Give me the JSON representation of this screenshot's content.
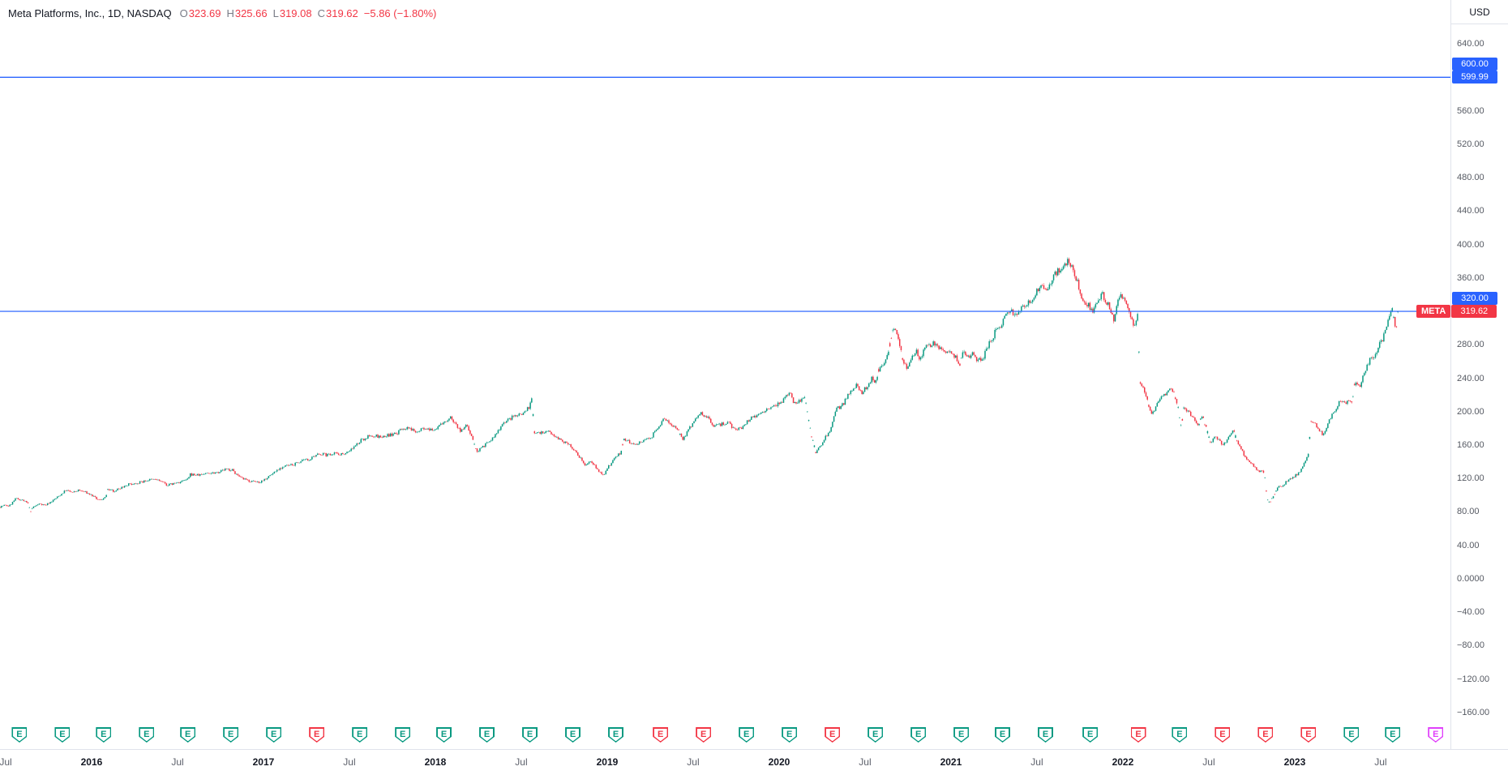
{
  "header": {
    "title": "Meta Platforms, Inc., 1D, NASDAQ",
    "ohlc": [
      {
        "label": "O",
        "value": "323.69"
      },
      {
        "label": "H",
        "value": "325.66"
      },
      {
        "label": "L",
        "value": "319.08"
      },
      {
        "label": "C",
        "value": "319.62"
      }
    ],
    "change": "−5.86 (−1.80%)"
  },
  "price_scale": {
    "currency": "USD",
    "ticks": [
      {
        "price": 640,
        "label": "640.00"
      },
      {
        "price": 560,
        "label": "560.00"
      },
      {
        "price": 520,
        "label": "520.00"
      },
      {
        "price": 480,
        "label": "480.00"
      },
      {
        "price": 440,
        "label": "440.00"
      },
      {
        "price": 400,
        "label": "400.00"
      },
      {
        "price": 360,
        "label": "360.00"
      },
      {
        "price": 280,
        "label": "280.00"
      },
      {
        "price": 240,
        "label": "240.00"
      },
      {
        "price": 200,
        "label": "200.00"
      },
      {
        "price": 160,
        "label": "160.00"
      },
      {
        "price": 120,
        "label": "120.00"
      },
      {
        "price": 80,
        "label": "80.00"
      },
      {
        "price": 40,
        "label": "40.00"
      },
      {
        "price": 0,
        "label": "0.0000"
      },
      {
        "price": -40,
        "label": "−40.00"
      },
      {
        "price": -80,
        "label": "−80.00"
      },
      {
        "price": -120,
        "label": "−120.00"
      },
      {
        "price": -160,
        "label": "−160.00"
      }
    ],
    "badges": [
      {
        "label": "600.00",
        "price": 600,
        "stack": -1,
        "kind": "level"
      },
      {
        "label": "599.99",
        "price": 599.99,
        "stack": 0,
        "kind": "level"
      },
      {
        "label": "320.00",
        "price": 320,
        "stack": -1,
        "kind": "level"
      },
      {
        "label": "319.62",
        "prefix": "META",
        "price": 319.62,
        "stack": 0,
        "kind": "last-price"
      }
    ]
  },
  "time_scale": {
    "labels": [
      {
        "text": "Jul",
        "year": 2015.5,
        "major": false
      },
      {
        "text": "2016",
        "year": 2016,
        "major": true
      },
      {
        "text": "Jul",
        "year": 2016.5,
        "major": false
      },
      {
        "text": "2017",
        "year": 2017,
        "major": true
      },
      {
        "text": "Jul",
        "year": 2017.5,
        "major": false
      },
      {
        "text": "2018",
        "year": 2018,
        "major": true
      },
      {
        "text": "Jul",
        "year": 2018.5,
        "major": false
      },
      {
        "text": "2019",
        "year": 2019,
        "major": true
      },
      {
        "text": "Jul",
        "year": 2019.5,
        "major": false
      },
      {
        "text": "2020",
        "year": 2020,
        "major": true
      },
      {
        "text": "Jul",
        "year": 2020.5,
        "major": false
      },
      {
        "text": "2021",
        "year": 2021,
        "major": true
      },
      {
        "text": "Jul",
        "year": 2021.5,
        "major": false
      },
      {
        "text": "2022",
        "year": 2022,
        "major": true
      },
      {
        "text": "Jul",
        "year": 2022.5,
        "major": false
      },
      {
        "text": "2023",
        "year": 2023,
        "major": true
      },
      {
        "text": "Jul",
        "year": 2023.5,
        "major": false
      }
    ]
  },
  "earnings_markers": [
    {
      "year": 2015.58,
      "status": "beat"
    },
    {
      "year": 2015.83,
      "status": "beat"
    },
    {
      "year": 2016.07,
      "status": "beat"
    },
    {
      "year": 2016.32,
      "status": "beat"
    },
    {
      "year": 2016.56,
      "status": "beat"
    },
    {
      "year": 2016.81,
      "status": "beat"
    },
    {
      "year": 2017.06,
      "status": "beat"
    },
    {
      "year": 2017.31,
      "status": "miss"
    },
    {
      "year": 2017.56,
      "status": "beat"
    },
    {
      "year": 2017.81,
      "status": "beat"
    },
    {
      "year": 2018.05,
      "status": "beat"
    },
    {
      "year": 2018.3,
      "status": "beat"
    },
    {
      "year": 2018.55,
      "status": "beat"
    },
    {
      "year": 2018.8,
      "status": "beat"
    },
    {
      "year": 2019.05,
      "status": "beat"
    },
    {
      "year": 2019.31,
      "status": "miss"
    },
    {
      "year": 2019.56,
      "status": "miss"
    },
    {
      "year": 2019.81,
      "status": "beat"
    },
    {
      "year": 2020.06,
      "status": "beat"
    },
    {
      "year": 2020.31,
      "status": "miss"
    },
    {
      "year": 2020.56,
      "status": "beat"
    },
    {
      "year": 2020.81,
      "status": "beat"
    },
    {
      "year": 2021.06,
      "status": "beat"
    },
    {
      "year": 2021.3,
      "status": "beat"
    },
    {
      "year": 2021.55,
      "status": "beat"
    },
    {
      "year": 2021.81,
      "status": "beat"
    },
    {
      "year": 2022.09,
      "status": "miss"
    },
    {
      "year": 2022.33,
      "status": "beat"
    },
    {
      "year": 2022.58,
      "status": "miss"
    },
    {
      "year": 2022.83,
      "status": "miss"
    },
    {
      "year": 2023.08,
      "status": "miss"
    },
    {
      "year": 2023.33,
      "status": "beat"
    },
    {
      "year": 2023.57,
      "status": "beat"
    },
    {
      "year": 2023.82,
      "status": "upcoming"
    }
  ],
  "colors": {
    "up": "#089981",
    "down": "#f23645",
    "level_line": "#2962ff",
    "level_badge": "#2962ff",
    "last_badge": "#f23645",
    "beat": "#089981",
    "miss": "#f23645",
    "upcoming": "#e040fb",
    "title_text": "#131722",
    "muted_text": "#787b86",
    "tick_text": "#555962",
    "axis_border": "#e0e3eb"
  },
  "chart_data": {
    "type": "candlestick",
    "title": "Meta Platforms, Inc., 1D, NASDAQ",
    "symbol": "META",
    "exchange": "NASDAQ",
    "timeframe": "1D",
    "currency": "USD",
    "grid": false,
    "legend_position": "top-left",
    "xlim_years": [
      2015.467,
      2023.906
    ],
    "ylim_price": [
      -203.7,
      692.5
    ],
    "last_close": 319.62,
    "horizontal_lines": [
      600.0,
      599.99,
      320.0
    ],
    "bar_count": 1000,
    "volatility": 0.012,
    "seed": 7,
    "anchors": [
      [
        2015.467,
        86
      ],
      [
        2015.49,
        88
      ],
      [
        2015.52,
        87
      ],
      [
        2015.56,
        96
      ],
      [
        2015.6,
        94
      ],
      [
        2015.63,
        90
      ],
      [
        2015.645,
        80
      ],
      [
        2015.66,
        86
      ],
      [
        2015.7,
        90
      ],
      [
        2015.73,
        88
      ],
      [
        2015.77,
        93
      ],
      [
        2015.81,
        99
      ],
      [
        2015.85,
        106
      ],
      [
        2015.89,
        103
      ],
      [
        2015.92,
        106
      ],
      [
        2015.96,
        104
      ],
      [
        2016,
        100
      ],
      [
        2016.04,
        94
      ],
      [
        2016.08,
        97
      ],
      [
        2016.095,
        107
      ],
      [
        2016.13,
        105
      ],
      [
        2016.17,
        109
      ],
      [
        2016.21,
        113
      ],
      [
        2016.25,
        114
      ],
      [
        2016.29,
        116
      ],
      [
        2016.33,
        118
      ],
      [
        2016.37,
        119
      ],
      [
        2016.4,
        117
      ],
      [
        2016.44,
        112
      ],
      [
        2016.48,
        114
      ],
      [
        2016.52,
        116
      ],
      [
        2016.56,
        119
      ],
      [
        2016.575,
        125
      ],
      [
        2016.62,
        124
      ],
      [
        2016.66,
        126
      ],
      [
        2016.7,
        127
      ],
      [
        2016.74,
        128
      ],
      [
        2016.78,
        131
      ],
      [
        2016.82,
        130
      ],
      [
        2016.86,
        121
      ],
      [
        2016.9,
        118
      ],
      [
        2016.94,
        116
      ],
      [
        2016.98,
        116
      ],
      [
        2017.02,
        121
      ],
      [
        2017.06,
        127
      ],
      [
        2017.09,
        132
      ],
      [
        2017.13,
        135
      ],
      [
        2017.17,
        136
      ],
      [
        2017.21,
        140
      ],
      [
        2017.25,
        142
      ],
      [
        2017.29,
        145
      ],
      [
        2017.33,
        150
      ],
      [
        2017.37,
        148
      ],
      [
        2017.41,
        151
      ],
      [
        2017.45,
        149
      ],
      [
        2017.49,
        152
      ],
      [
        2017.53,
        158
      ],
      [
        2017.57,
        166
      ],
      [
        2017.61,
        170
      ],
      [
        2017.65,
        171
      ],
      [
        2017.69,
        169
      ],
      [
        2017.73,
        172
      ],
      [
        2017.77,
        173
      ],
      [
        2017.81,
        180
      ],
      [
        2017.85,
        179
      ],
      [
        2017.89,
        177
      ],
      [
        2017.93,
        180
      ],
      [
        2017.97,
        177
      ],
      [
        2018.01,
        181
      ],
      [
        2018.05,
        187
      ],
      [
        2018.09,
        193
      ],
      [
        2018.12,
        185
      ],
      [
        2018.15,
        176
      ],
      [
        2018.18,
        184
      ],
      [
        2018.21,
        172
      ],
      [
        2018.24,
        152
      ],
      [
        2018.27,
        158
      ],
      [
        2018.31,
        163
      ],
      [
        2018.35,
        172
      ],
      [
        2018.39,
        186
      ],
      [
        2018.43,
        191
      ],
      [
        2018.47,
        196
      ],
      [
        2018.51,
        198
      ],
      [
        2018.55,
        207
      ],
      [
        2018.562,
        217
      ],
      [
        2018.575,
        176
      ],
      [
        2018.61,
        175
      ],
      [
        2018.65,
        177
      ],
      [
        2018.69,
        172
      ],
      [
        2018.73,
        166
      ],
      [
        2018.77,
        161
      ],
      [
        2018.81,
        155
      ],
      [
        2018.84,
        145
      ],
      [
        2018.87,
        137
      ],
      [
        2018.9,
        141
      ],
      [
        2018.93,
        135
      ],
      [
        2018.96,
        127
      ],
      [
        2018.985,
        125
      ],
      [
        2019.01,
        135
      ],
      [
        2019.05,
        147
      ],
      [
        2019.08,
        150
      ],
      [
        2019.095,
        166
      ],
      [
        2019.13,
        164
      ],
      [
        2019.17,
        162
      ],
      [
        2019.21,
        166
      ],
      [
        2019.25,
        168
      ],
      [
        2019.29,
        179
      ],
      [
        2019.33,
        192
      ],
      [
        2019.37,
        186
      ],
      [
        2019.41,
        178
      ],
      [
        2019.44,
        166
      ],
      [
        2019.47,
        177
      ],
      [
        2019.51,
        191
      ],
      [
        2019.55,
        198
      ],
      [
        2019.59,
        192
      ],
      [
        2019.62,
        182
      ],
      [
        2019.66,
        184
      ],
      [
        2019.7,
        188
      ],
      [
        2019.74,
        179
      ],
      [
        2019.78,
        181
      ],
      [
        2019.82,
        190
      ],
      [
        2019.86,
        195
      ],
      [
        2019.9,
        201
      ],
      [
        2019.94,
        203
      ],
      [
        2019.98,
        206
      ],
      [
        2020.02,
        213
      ],
      [
        2020.06,
        222
      ],
      [
        2020.09,
        210
      ],
      [
        2020.12,
        214
      ],
      [
        2020.15,
        216
      ],
      [
        2020.17,
        193
      ],
      [
        2020.19,
        170
      ],
      [
        2020.215,
        150
      ],
      [
        2020.23,
        156
      ],
      [
        2020.26,
        166
      ],
      [
        2020.3,
        178
      ],
      [
        2020.33,
        202
      ],
      [
        2020.37,
        208
      ],
      [
        2020.41,
        222
      ],
      [
        2020.45,
        233
      ],
      [
        2020.48,
        222
      ],
      [
        2020.51,
        230
      ],
      [
        2020.54,
        240
      ],
      [
        2020.56,
        233
      ],
      [
        2020.58,
        250
      ],
      [
        2020.61,
        259
      ],
      [
        2020.64,
        276
      ],
      [
        2020.665,
        301
      ],
      [
        2020.69,
        290
      ],
      [
        2020.72,
        262
      ],
      [
        2020.74,
        252
      ],
      [
        2020.77,
        265
      ],
      [
        2020.8,
        272
      ],
      [
        2020.82,
        262
      ],
      [
        2020.85,
        278
      ],
      [
        2020.88,
        277
      ],
      [
        2020.9,
        284
      ],
      [
        2020.93,
        276
      ],
      [
        2020.96,
        272
      ],
      [
        2020.99,
        273
      ],
      [
        2021.02,
        267
      ],
      [
        2021.05,
        256
      ],
      [
        2021.07,
        272
      ],
      [
        2021.1,
        264
      ],
      [
        2021.13,
        270
      ],
      [
        2021.16,
        260
      ],
      [
        2021.19,
        266
      ],
      [
        2021.22,
        281
      ],
      [
        2021.26,
        296
      ],
      [
        2021.3,
        306
      ],
      [
        2021.34,
        323
      ],
      [
        2021.37,
        315
      ],
      [
        2021.41,
        326
      ],
      [
        2021.45,
        329
      ],
      [
        2021.49,
        342
      ],
      [
        2021.52,
        352
      ],
      [
        2021.55,
        346
      ],
      [
        2021.58,
        356
      ],
      [
        2021.61,
        365
      ],
      [
        2021.64,
        371
      ],
      [
        2021.67,
        378
      ],
      [
        2021.685,
        382
      ],
      [
        2021.71,
        372
      ],
      [
        2021.74,
        352
      ],
      [
        2021.77,
        330
      ],
      [
        2021.8,
        327
      ],
      [
        2021.83,
        321
      ],
      [
        2021.86,
        332
      ],
      [
        2021.88,
        341
      ],
      [
        2021.91,
        330
      ],
      [
        2021.93,
        317
      ],
      [
        2021.95,
        308
      ],
      [
        2021.97,
        334
      ],
      [
        2021.99,
        341
      ],
      [
        2022.01,
        334
      ],
      [
        2022.03,
        323
      ],
      [
        2022.05,
        308
      ],
      [
        2022.07,
        303
      ],
      [
        2022.085,
        320
      ],
      [
        2022.1,
        237
      ],
      [
        2022.12,
        228
      ],
      [
        2022.14,
        217
      ],
      [
        2022.165,
        196
      ],
      [
        2022.19,
        205
      ],
      [
        2022.22,
        216
      ],
      [
        2022.25,
        222
      ],
      [
        2022.27,
        230
      ],
      [
        2022.3,
        220
      ],
      [
        2022.32,
        206
      ],
      [
        2022.34,
        180
      ],
      [
        2022.355,
        205
      ],
      [
        2022.38,
        200
      ],
      [
        2022.41,
        194
      ],
      [
        2022.44,
        184
      ],
      [
        2022.46,
        196
      ],
      [
        2022.49,
        177
      ],
      [
        2022.51,
        163
      ],
      [
        2022.54,
        170
      ],
      [
        2022.56,
        166
      ],
      [
        2022.585,
        160
      ],
      [
        2022.61,
        167
      ],
      [
        2022.64,
        178
      ],
      [
        2022.67,
        162
      ],
      [
        2022.7,
        150
      ],
      [
        2022.73,
        141
      ],
      [
        2022.76,
        136
      ],
      [
        2022.79,
        128
      ],
      [
        2022.81,
        131
      ],
      [
        2022.825,
        124
      ],
      [
        2022.84,
        95
      ],
      [
        2022.855,
        90
      ],
      [
        2022.87,
        97
      ],
      [
        2022.89,
        104
      ],
      [
        2022.91,
        112
      ],
      [
        2022.93,
        110
      ],
      [
        2022.95,
        116
      ],
      [
        2022.97,
        119
      ],
      [
        2022.99,
        121
      ],
      [
        2023.02,
        126
      ],
      [
        2023.05,
        135
      ],
      [
        2023.08,
        150
      ],
      [
        2023.095,
        188
      ],
      [
        2023.12,
        184
      ],
      [
        2023.14,
        178
      ],
      [
        2023.17,
        172
      ],
      [
        2023.2,
        190
      ],
      [
        2023.23,
        201
      ],
      [
        2023.26,
        212
      ],
      [
        2023.29,
        209
      ],
      [
        2023.32,
        213
      ],
      [
        2023.335,
        209
      ],
      [
        2023.35,
        238
      ],
      [
        2023.38,
        232
      ],
      [
        2023.41,
        248
      ],
      [
        2023.44,
        264
      ],
      [
        2023.46,
        262
      ],
      [
        2023.48,
        274
      ],
      [
        2023.51,
        287
      ],
      [
        2023.53,
        298
      ],
      [
        2023.55,
        311
      ],
      [
        2023.565,
        324
      ],
      [
        2023.578,
        308
      ],
      [
        2023.59,
        301
      ],
      [
        2023.6,
        319.62
      ]
    ]
  }
}
